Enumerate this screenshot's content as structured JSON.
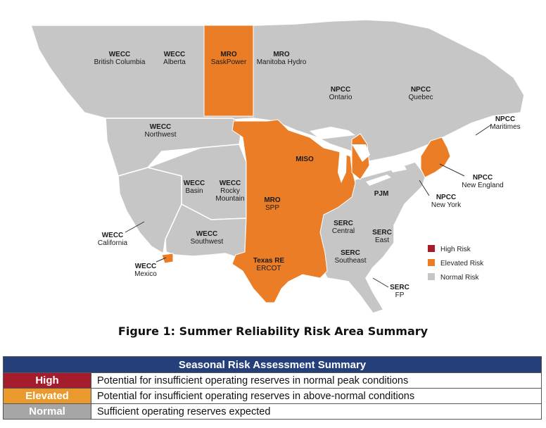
{
  "colors": {
    "high": "#a51d2d",
    "elevated": "#ea7d25",
    "normal": "#c6c6c6",
    "region_border": "#ffffff",
    "table_header": "#243f7a",
    "table_normal_fill": "#a6a6a6"
  },
  "map": {
    "regions": [
      {
        "code": "WECC",
        "name": "British Columbia",
        "risk": "normal"
      },
      {
        "code": "WECC",
        "name": "Alberta",
        "risk": "normal"
      },
      {
        "code": "MRO",
        "name": "SaskPower",
        "risk": "elevated"
      },
      {
        "code": "MRO",
        "name": "Manitoba Hydro",
        "risk": "normal"
      },
      {
        "code": "NPCC",
        "name": "Ontario",
        "risk": "normal"
      },
      {
        "code": "NPCC",
        "name": "Quebec",
        "risk": "normal"
      },
      {
        "code": "NPCC",
        "name": "Maritimes",
        "risk": "normal"
      },
      {
        "code": "WECC",
        "name": "Northwest",
        "risk": "normal"
      },
      {
        "code": "MISO",
        "name": "",
        "risk": "elevated"
      },
      {
        "code": "NPCC",
        "name": "New England",
        "risk": "elevated"
      },
      {
        "code": "WECC",
        "name": "Basin",
        "risk": "normal"
      },
      {
        "code": "WECC",
        "name": "Rocky Mountain",
        "risk": "normal"
      },
      {
        "code": "MRO",
        "name": "SPP",
        "risk": "elevated"
      },
      {
        "code": "PJM",
        "name": "",
        "risk": "normal"
      },
      {
        "code": "NPCC",
        "name": "New York",
        "risk": "normal"
      },
      {
        "code": "WECC",
        "name": "California",
        "risk": "normal"
      },
      {
        "code": "WECC",
        "name": "Southwest",
        "risk": "normal"
      },
      {
        "code": "SERC",
        "name": "Central",
        "risk": "normal"
      },
      {
        "code": "SERC",
        "name": "East",
        "risk": "normal"
      },
      {
        "code": "SERC",
        "name": "Southeast",
        "risk": "normal"
      },
      {
        "code": "Texas RE",
        "name": "ERCOT",
        "risk": "elevated"
      },
      {
        "code": "WECC",
        "name": "Mexico",
        "risk": "elevated"
      },
      {
        "code": "SERC",
        "name": "FP",
        "risk": "normal"
      }
    ],
    "legend": [
      {
        "label": "High Risk",
        "risk": "high"
      },
      {
        "label": "Elevated Risk",
        "risk": "elevated"
      },
      {
        "label": "Normal Risk",
        "risk": "normal"
      }
    ]
  },
  "caption": "Figure 1: Summer Reliability Risk Area Summary",
  "summary_table": {
    "title": "Seasonal Risk Assessment Summary",
    "rows": [
      {
        "level": "High",
        "description": "Potential for insufficient operating reserves in normal peak conditions",
        "color": "#a51d2d"
      },
      {
        "level": "Elevated",
        "description": "Potential for insufficient operating reserves in above-normal conditions",
        "color": "#ea9a2c"
      },
      {
        "level": "Normal",
        "description": "Sufficient operating reserves expected",
        "color": "#a6a6a6"
      }
    ]
  }
}
